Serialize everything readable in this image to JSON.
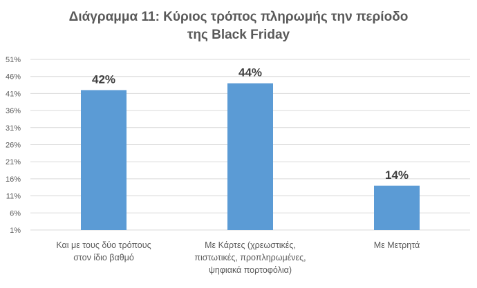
{
  "chart_data": {
    "type": "bar",
    "title_lines": [
      "Διάγραμμα 11: Κύριος τρόπος πληρωμής την περίοδο",
      "της Black Friday"
    ],
    "categories": [
      [
        "Και με τους δύο τρόπους",
        "στον ίδιο βαθμό"
      ],
      [
        "Με Κάρτες (χρεωστικές,",
        "πιστωτικές, προπληρωμένες,",
        "ψηφιακά πορτοφόλια)"
      ],
      [
        "Με Μετρητά"
      ]
    ],
    "values": [
      42,
      44,
      14
    ],
    "data_labels": [
      "42%",
      "44%",
      "14%"
    ],
    "y_ticks": [
      "1%",
      "6%",
      "11%",
      "16%",
      "21%",
      "26%",
      "31%",
      "36%",
      "41%",
      "46%",
      "51%"
    ],
    "ylim": [
      1,
      51
    ],
    "grid": true,
    "legend": "none",
    "bar_color": "#5b9bd5",
    "grid_color": "#d9d9d9"
  }
}
